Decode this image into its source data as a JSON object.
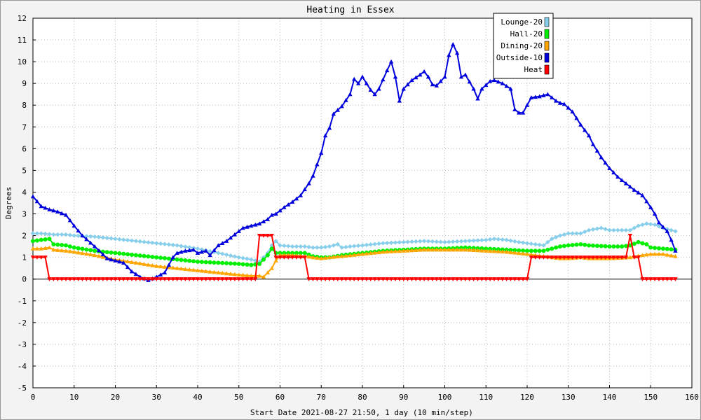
{
  "chart_data": {
    "type": "line",
    "title": "Heating in Essex",
    "xlabel": "Start Date 2021-08-27 21:50, 1 day (10 min/step)",
    "ylabel": "Degrees",
    "xlim": [
      0,
      160
    ],
    "ylim": [
      -5,
      12
    ],
    "xticks": [
      0,
      10,
      20,
      30,
      40,
      50,
      60,
      70,
      80,
      90,
      100,
      110,
      120,
      130,
      140,
      150,
      160
    ],
    "yticks": [
      -5,
      -4,
      -3,
      -2,
      -1,
      0,
      1,
      2,
      3,
      4,
      5,
      6,
      7,
      8,
      9,
      10,
      11,
      12
    ],
    "grid": true,
    "legend_position": "top-right",
    "series": [
      {
        "name": "Lounge-20",
        "color": "#87ceeb",
        "marker": "diamond",
        "points": [
          [
            0,
            2.1
          ],
          [
            2,
            2.1
          ],
          [
            5,
            2.05
          ],
          [
            8,
            2.05
          ],
          [
            10,
            2.0
          ],
          [
            15,
            1.95
          ],
          [
            20,
            1.85
          ],
          [
            25,
            1.75
          ],
          [
            30,
            1.65
          ],
          [
            35,
            1.55
          ],
          [
            40,
            1.4
          ],
          [
            45,
            1.2
          ],
          [
            50,
            1.0
          ],
          [
            53,
            0.9
          ],
          [
            55,
            0.8
          ],
          [
            57,
            1.2
          ],
          [
            58,
            1.55
          ],
          [
            59,
            1.75
          ],
          [
            60,
            1.55
          ],
          [
            63,
            1.5
          ],
          [
            66,
            1.5
          ],
          [
            68,
            1.45
          ],
          [
            70,
            1.45
          ],
          [
            72,
            1.5
          ],
          [
            74,
            1.6
          ],
          [
            75,
            1.45
          ],
          [
            77,
            1.5
          ],
          [
            80,
            1.55
          ],
          [
            85,
            1.65
          ],
          [
            90,
            1.7
          ],
          [
            95,
            1.75
          ],
          [
            100,
            1.7
          ],
          [
            105,
            1.75
          ],
          [
            110,
            1.8
          ],
          [
            112,
            1.85
          ],
          [
            115,
            1.8
          ],
          [
            118,
            1.7
          ],
          [
            120,
            1.65
          ],
          [
            124,
            1.55
          ],
          [
            126,
            1.85
          ],
          [
            128,
            2.0
          ],
          [
            130,
            2.1
          ],
          [
            133,
            2.1
          ],
          [
            135,
            2.25
          ],
          [
            138,
            2.35
          ],
          [
            140,
            2.25
          ],
          [
            145,
            2.25
          ],
          [
            147,
            2.45
          ],
          [
            149,
            2.55
          ],
          [
            151,
            2.5
          ],
          [
            153,
            2.35
          ],
          [
            156,
            2.2
          ]
        ]
      },
      {
        "name": "Hall-20",
        "color": "#00ee00",
        "marker": "circle",
        "points": [
          [
            0,
            1.75
          ],
          [
            2,
            1.8
          ],
          [
            4,
            1.85
          ],
          [
            5,
            1.6
          ],
          [
            8,
            1.55
          ],
          [
            10,
            1.45
          ],
          [
            15,
            1.3
          ],
          [
            20,
            1.2
          ],
          [
            25,
            1.1
          ],
          [
            30,
            1.0
          ],
          [
            35,
            0.9
          ],
          [
            40,
            0.8
          ],
          [
            45,
            0.75
          ],
          [
            50,
            0.7
          ],
          [
            53,
            0.65
          ],
          [
            55,
            0.7
          ],
          [
            57,
            1.1
          ],
          [
            58,
            1.4
          ],
          [
            59,
            1.2
          ],
          [
            60,
            1.2
          ],
          [
            63,
            1.2
          ],
          [
            66,
            1.2
          ],
          [
            68,
            1.05
          ],
          [
            70,
            1.0
          ],
          [
            72,
            1.0
          ],
          [
            75,
            1.1
          ],
          [
            80,
            1.2
          ],
          [
            85,
            1.3
          ],
          [
            90,
            1.35
          ],
          [
            95,
            1.4
          ],
          [
            100,
            1.4
          ],
          [
            105,
            1.45
          ],
          [
            110,
            1.4
          ],
          [
            115,
            1.35
          ],
          [
            120,
            1.3
          ],
          [
            124,
            1.3
          ],
          [
            126,
            1.4
          ],
          [
            128,
            1.5
          ],
          [
            130,
            1.55
          ],
          [
            133,
            1.6
          ],
          [
            135,
            1.55
          ],
          [
            140,
            1.5
          ],
          [
            143,
            1.5
          ],
          [
            145,
            1.55
          ],
          [
            147,
            1.7
          ],
          [
            149,
            1.6
          ],
          [
            150,
            1.45
          ],
          [
            153,
            1.4
          ],
          [
            156,
            1.35
          ]
        ]
      },
      {
        "name": "Dining-20",
        "color": "#ffa500",
        "marker": "triangle-up",
        "points": [
          [
            0,
            1.4
          ],
          [
            2,
            1.4
          ],
          [
            4,
            1.45
          ],
          [
            5,
            1.35
          ],
          [
            8,
            1.3
          ],
          [
            10,
            1.25
          ],
          [
            15,
            1.1
          ],
          [
            20,
            0.9
          ],
          [
            25,
            0.75
          ],
          [
            30,
            0.6
          ],
          [
            35,
            0.5
          ],
          [
            40,
            0.4
          ],
          [
            45,
            0.3
          ],
          [
            50,
            0.2
          ],
          [
            53,
            0.15
          ],
          [
            55,
            0.15
          ],
          [
            56,
            0.1
          ],
          [
            57,
            0.3
          ],
          [
            58,
            0.5
          ],
          [
            59,
            0.85
          ],
          [
            60,
            1.1
          ],
          [
            63,
            1.1
          ],
          [
            66,
            1.05
          ],
          [
            68,
            1.0
          ],
          [
            70,
            0.95
          ],
          [
            72,
            1.0
          ],
          [
            75,
            1.05
          ],
          [
            80,
            1.15
          ],
          [
            85,
            1.25
          ],
          [
            90,
            1.3
          ],
          [
            95,
            1.35
          ],
          [
            100,
            1.35
          ],
          [
            105,
            1.35
          ],
          [
            110,
            1.3
          ],
          [
            115,
            1.25
          ],
          [
            120,
            1.15
          ],
          [
            124,
            1.05
          ],
          [
            128,
            0.95
          ],
          [
            130,
            0.95
          ],
          [
            133,
            1.0
          ],
          [
            135,
            0.95
          ],
          [
            140,
            0.95
          ],
          [
            145,
            1.0
          ],
          [
            148,
            1.1
          ],
          [
            150,
            1.15
          ],
          [
            153,
            1.15
          ],
          [
            156,
            1.05
          ]
        ]
      },
      {
        "name": "Outside-10",
        "color": "#0000dd",
        "marker": "triangle-up",
        "points": [
          [
            0,
            3.8
          ],
          [
            2,
            3.35
          ],
          [
            4,
            3.2
          ],
          [
            6,
            3.1
          ],
          [
            8,
            2.95
          ],
          [
            10,
            2.45
          ],
          [
            12,
            2.0
          ],
          [
            15,
            1.5
          ],
          [
            18,
            0.95
          ],
          [
            20,
            0.85
          ],
          [
            22,
            0.75
          ],
          [
            24,
            0.35
          ],
          [
            26,
            0.1
          ],
          [
            28,
            -0.05
          ],
          [
            30,
            0.1
          ],
          [
            32,
            0.3
          ],
          [
            34,
            1.0
          ],
          [
            35,
            1.2
          ],
          [
            37,
            1.3
          ],
          [
            39,
            1.35
          ],
          [
            40,
            1.2
          ],
          [
            42,
            1.3
          ],
          [
            43,
            1.1
          ],
          [
            45,
            1.55
          ],
          [
            47,
            1.75
          ],
          [
            49,
            2.05
          ],
          [
            51,
            2.35
          ],
          [
            53,
            2.45
          ],
          [
            55,
            2.55
          ],
          [
            57,
            2.75
          ],
          [
            58,
            2.95
          ],
          [
            59,
            3.0
          ],
          [
            61,
            3.3
          ],
          [
            63,
            3.55
          ],
          [
            65,
            3.85
          ],
          [
            67,
            4.4
          ],
          [
            68,
            4.75
          ],
          [
            70,
            5.8
          ],
          [
            71,
            6.6
          ],
          [
            72,
            6.95
          ],
          [
            73,
            7.6
          ],
          [
            75,
            7.95
          ],
          [
            77,
            8.5
          ],
          [
            78,
            9.2
          ],
          [
            79,
            9.0
          ],
          [
            80,
            9.3
          ],
          [
            82,
            8.7
          ],
          [
            83,
            8.5
          ],
          [
            84,
            8.75
          ],
          [
            86,
            9.6
          ],
          [
            87,
            10.0
          ],
          [
            88,
            9.3
          ],
          [
            89,
            8.2
          ],
          [
            90,
            8.75
          ],
          [
            92,
            9.15
          ],
          [
            94,
            9.4
          ],
          [
            95,
            9.55
          ],
          [
            96,
            9.3
          ],
          [
            97,
            8.95
          ],
          [
            98,
            8.9
          ],
          [
            100,
            9.3
          ],
          [
            101,
            10.3
          ],
          [
            102,
            10.8
          ],
          [
            103,
            10.4
          ],
          [
            104,
            9.3
          ],
          [
            105,
            9.4
          ],
          [
            107,
            8.75
          ],
          [
            108,
            8.3
          ],
          [
            109,
            8.75
          ],
          [
            111,
            9.1
          ],
          [
            112,
            9.15
          ],
          [
            114,
            9.0
          ],
          [
            116,
            8.75
          ],
          [
            117,
            7.8
          ],
          [
            118,
            7.65
          ],
          [
            119,
            7.65
          ],
          [
            121,
            8.35
          ],
          [
            123,
            8.4
          ],
          [
            125,
            8.5
          ],
          [
            127,
            8.2
          ],
          [
            128,
            8.1
          ],
          [
            129,
            8.05
          ],
          [
            131,
            7.7
          ],
          [
            133,
            7.1
          ],
          [
            135,
            6.6
          ],
          [
            136,
            6.2
          ],
          [
            138,
            5.6
          ],
          [
            140,
            5.1
          ],
          [
            142,
            4.7
          ],
          [
            144,
            4.4
          ],
          [
            146,
            4.1
          ],
          [
            148,
            3.85
          ],
          [
            150,
            3.3
          ],
          [
            151,
            3.0
          ],
          [
            152,
            2.6
          ],
          [
            154,
            2.2
          ],
          [
            155,
            1.8
          ],
          [
            156,
            1.3
          ]
        ]
      },
      {
        "name": "Heat",
        "color": "#ff0000",
        "marker": "triangle-down",
        "points": [
          [
            0,
            1
          ],
          [
            3,
            1
          ],
          [
            4,
            0
          ],
          [
            54,
            0
          ],
          [
            55,
            2
          ],
          [
            58,
            2
          ],
          [
            59,
            1
          ],
          [
            66,
            1
          ],
          [
            67,
            0
          ],
          [
            120,
            0
          ],
          [
            121,
            1
          ],
          [
            144,
            1
          ],
          [
            145,
            2
          ],
          [
            146,
            1
          ],
          [
            147,
            1
          ],
          [
            148,
            0
          ],
          [
            156,
            0
          ]
        ]
      }
    ]
  }
}
